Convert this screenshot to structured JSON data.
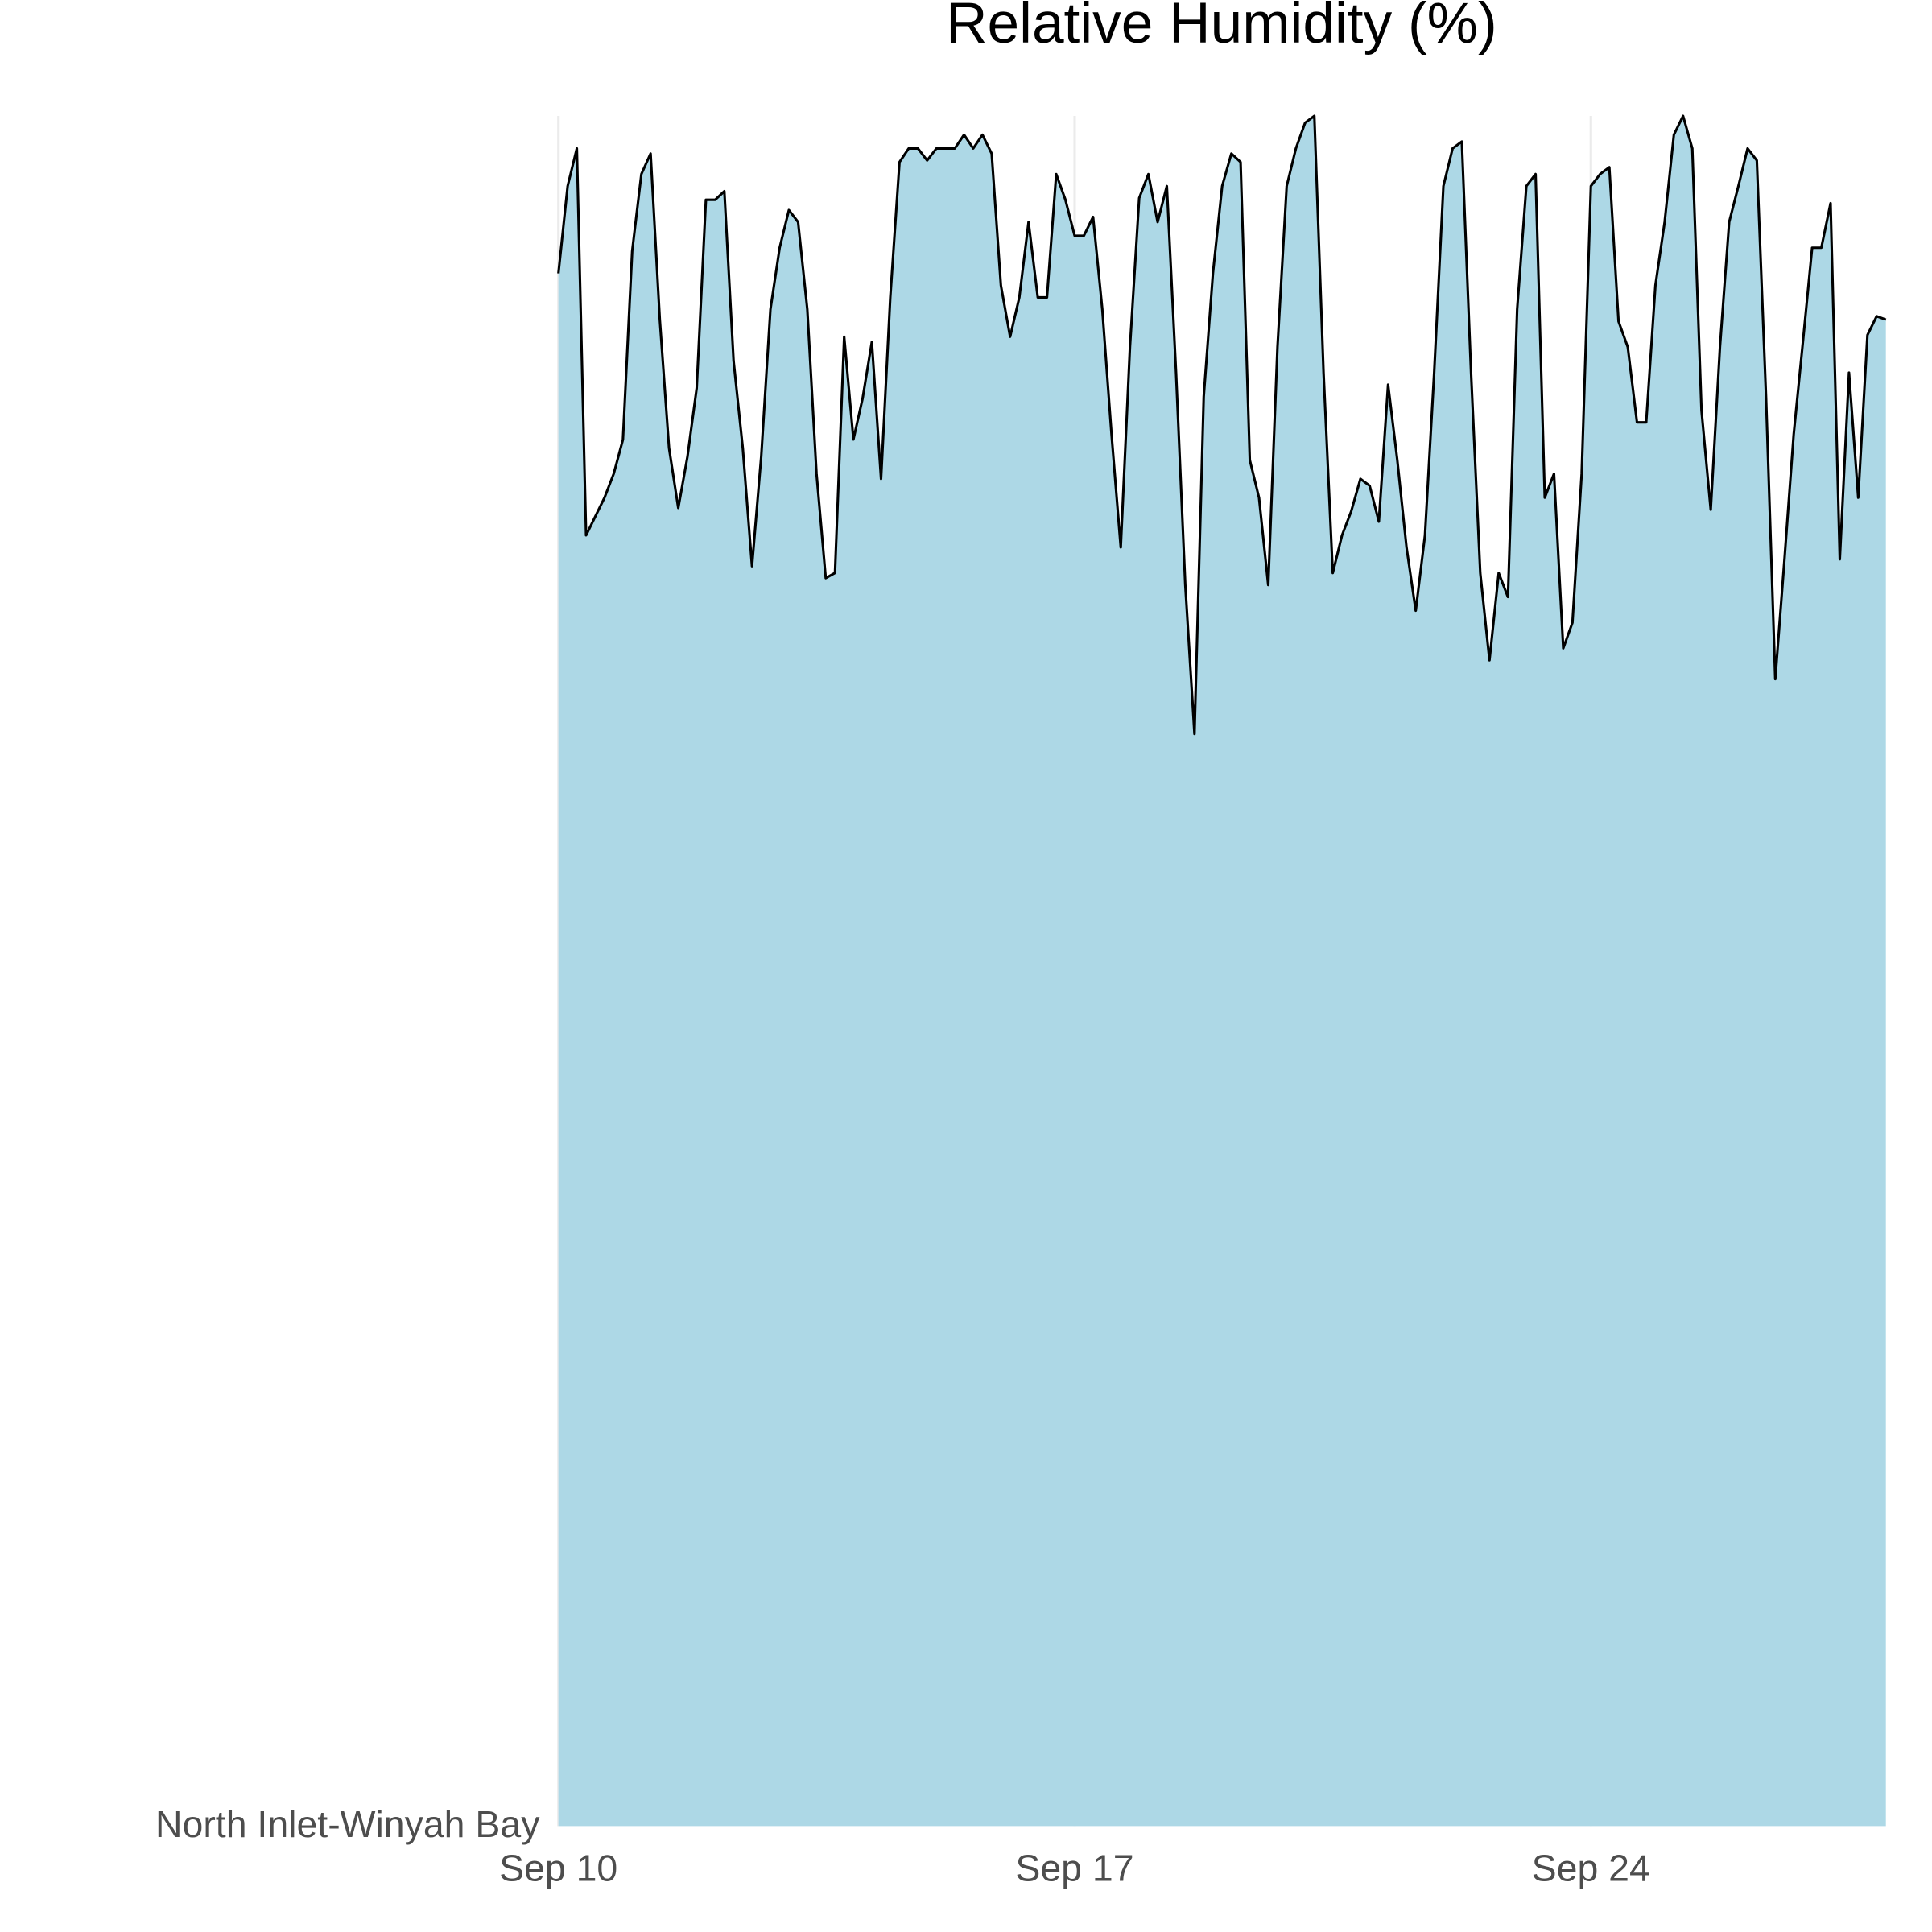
{
  "chart_data": {
    "type": "ridgeline",
    "title": "Relative Humidity (%)",
    "y_category": "North Inlet-Winyah Bay",
    "fill": "#add8e6",
    "line_color": "#000000",
    "grid": true,
    "xlim": [
      "Sep 10 00:00",
      "Sep 28 00:00"
    ],
    "xticks": [
      "Sep 10",
      "Sep 17",
      "Sep 24"
    ],
    "x": [
      "Sep 10 00:00",
      "Sep 10 03:00",
      "Sep 10 06:00",
      "Sep 10 09:00",
      "Sep 10 12:00",
      "Sep 10 15:00",
      "Sep 10 18:00",
      "Sep 10 21:00",
      "Sep 11 00:00",
      "Sep 11 03:00",
      "Sep 11 06:00",
      "Sep 11 09:00",
      "Sep 11 12:00",
      "Sep 11 15:00",
      "Sep 11 18:00",
      "Sep 11 21:00",
      "Sep 12 00:00",
      "Sep 12 03:00",
      "Sep 12 06:00",
      "Sep 12 09:00",
      "Sep 12 12:00",
      "Sep 12 15:00",
      "Sep 12 18:00",
      "Sep 12 21:00",
      "Sep 13 00:00",
      "Sep 13 03:00",
      "Sep 13 06:00",
      "Sep 13 09:00",
      "Sep 13 12:00",
      "Sep 13 15:00",
      "Sep 13 18:00",
      "Sep 13 21:00",
      "Sep 14 00:00",
      "Sep 14 03:00",
      "Sep 14 06:00",
      "Sep 14 09:00",
      "Sep 14 12:00",
      "Sep 14 15:00",
      "Sep 14 18:00",
      "Sep 14 21:00",
      "Sep 15 00:00",
      "Sep 15 03:00",
      "Sep 15 06:00",
      "Sep 15 09:00",
      "Sep 15 12:00",
      "Sep 15 15:00",
      "Sep 15 18:00",
      "Sep 15 21:00",
      "Sep 16 00:00",
      "Sep 16 03:00",
      "Sep 16 06:00",
      "Sep 16 09:00",
      "Sep 16 12:00",
      "Sep 16 15:00",
      "Sep 16 18:00",
      "Sep 16 21:00",
      "Sep 17 00:00",
      "Sep 17 03:00",
      "Sep 17 06:00",
      "Sep 17 09:00",
      "Sep 17 12:00",
      "Sep 17 15:00",
      "Sep 17 18:00",
      "Sep 17 21:00",
      "Sep 18 00:00",
      "Sep 18 03:00",
      "Sep 18 06:00",
      "Sep 18 09:00",
      "Sep 18 12:00",
      "Sep 18 15:00",
      "Sep 18 18:00",
      "Sep 18 21:00",
      "Sep 19 00:00",
      "Sep 19 03:00",
      "Sep 19 06:00",
      "Sep 19 09:00",
      "Sep 19 12:00",
      "Sep 19 15:00",
      "Sep 19 18:00",
      "Sep 19 21:00",
      "Sep 20 00:00",
      "Sep 20 03:00",
      "Sep 20 06:00",
      "Sep 20 09:00",
      "Sep 20 12:00",
      "Sep 20 15:00",
      "Sep 20 18:00",
      "Sep 20 21:00",
      "Sep 21 00:00",
      "Sep 21 03:00",
      "Sep 21 06:00",
      "Sep 21 09:00",
      "Sep 21 12:00",
      "Sep 21 15:00",
      "Sep 21 18:00",
      "Sep 21 21:00",
      "Sep 22 00:00",
      "Sep 22 03:00",
      "Sep 22 06:00",
      "Sep 22 09:00",
      "Sep 22 12:00",
      "Sep 22 15:00",
      "Sep 22 18:00",
      "Sep 22 21:00",
      "Sep 23 00:00",
      "Sep 23 03:00",
      "Sep 23 06:00",
      "Sep 23 09:00",
      "Sep 23 12:00",
      "Sep 23 15:00",
      "Sep 23 18:00",
      "Sep 23 21:00",
      "Sep 24 00:00",
      "Sep 24 03:00",
      "Sep 24 06:00",
      "Sep 24 09:00",
      "Sep 24 12:00",
      "Sep 24 15:00",
      "Sep 24 18:00",
      "Sep 24 21:00",
      "Sep 25 00:00",
      "Sep 25 03:00",
      "Sep 25 06:00",
      "Sep 25 09:00",
      "Sep 25 12:00",
      "Sep 25 15:00",
      "Sep 25 18:00",
      "Sep 25 21:00",
      "Sep 26 00:00",
      "Sep 26 03:00",
      "Sep 26 06:00",
      "Sep 26 09:00",
      "Sep 26 12:00",
      "Sep 26 15:00",
      "Sep 26 18:00",
      "Sep 26 21:00",
      "Sep 27 00:00",
      "Sep 27 03:00",
      "Sep 27 06:00",
      "Sep 27 09:00",
      "Sep 27 12:00",
      "Sep 27 15:00",
      "Sep 27 18:00",
      "Sep 27 21:00",
      "Sep 28 00:00"
    ],
    "series": [
      {
        "name": "North Inlet-Winyah Bay",
        "values": [
          90.7,
          95.8,
          98,
          75.4,
          76.5,
          77.6,
          79,
          81,
          92,
          96.5,
          97.7,
          88,
          80.5,
          77,
          80,
          84,
          95,
          95,
          95.5,
          85.6,
          80.5,
          73.6,
          80,
          88.6,
          92.2,
          94.4,
          93.7,
          88.6,
          79,
          72.9,
          73.2,
          87,
          81,
          83.4,
          86.7,
          78.7,
          89.3,
          97.2,
          98,
          98,
          97.3,
          98,
          98,
          98,
          98.8,
          98,
          98.8,
          97.7,
          90,
          87,
          89.3,
          93.7,
          89.3,
          89.3,
          96.5,
          95,
          92.9,
          92.9,
          94,
          88.6,
          81.3,
          74.7,
          86.4,
          95.1,
          96.5,
          93.7,
          95.8,
          84.9,
          72.5,
          63.8,
          83.5,
          90.7,
          95.8,
          97.7,
          97.2,
          79.8,
          77.6,
          72.5,
          86.4,
          95.8,
          98,
          99.5,
          99.9,
          84.9,
          73.2,
          75.4,
          76.8,
          78.7,
          78.3,
          76.2,
          84.2,
          79.8,
          74.7,
          71,
          75.4,
          84.9,
          95.8,
          98,
          98.4,
          84.9,
          73.2,
          68.1,
          73.2,
          71.8,
          88.6,
          95.8,
          96.5,
          77.6,
          79,
          68.8,
          70.3,
          79,
          95.8,
          96.5,
          96.9,
          87.9,
          86.4,
          82,
          82,
          90,
          93.7,
          98.8,
          99.9,
          98,
          82.7,
          76.9,
          86.4,
          93.7,
          95.8,
          98,
          97.3,
          83.5,
          67,
          74,
          81.3,
          86.7,
          92.2,
          92.2,
          94.8,
          74,
          84.9,
          77.6,
          87.1,
          88.2,
          88
        ]
      }
    ]
  }
}
